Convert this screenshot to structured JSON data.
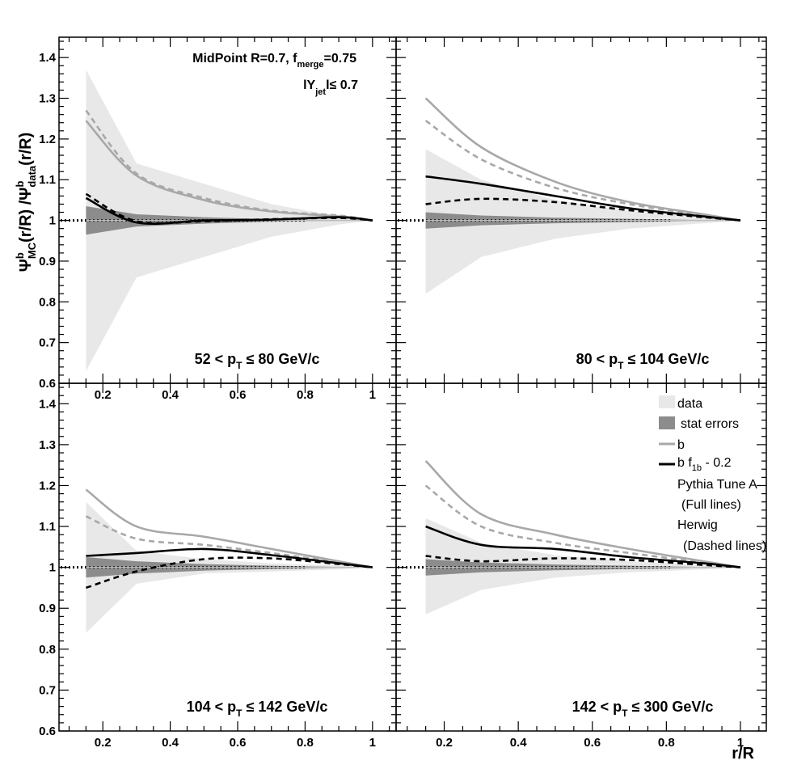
{
  "figure": {
    "ylabel_main": "Ψ",
    "ylabel_mc_sup": "b",
    "ylabel_mc_sub": "MC",
    "ylabel_mid": "(r/R) /Ψ",
    "ylabel_data_sup": "b",
    "ylabel_data_sub": "data",
    "ylabel_end": "(r/R)",
    "xlabel": "r/R",
    "annotation_algo_prefix": "MidPoint R=0.7, f",
    "annotation_algo_sub": "merge",
    "annotation_algo_suffix": "=0.75",
    "annotation_rap_prefix": "lY",
    "annotation_rap_sub": "jet",
    "annotation_rap_suffix": "l≤ 0.7"
  },
  "legend": {
    "data": "data",
    "stat": "stat errors",
    "b": "b",
    "bf_prefix": "b f",
    "bf_sub": "1b",
    "bf_suffix": " - 0.2",
    "pythia": "Pythia Tune A",
    "pythia_note": "(Full lines)",
    "herwig": "Herwig",
    "herwig_note": "(Dashed lines)"
  },
  "colors": {
    "data_band": "#e8e8e8",
    "stat_band": "#8c8c8c",
    "b_line": "#a8a8a8",
    "bf_line": "#000000"
  },
  "chart_data": [
    {
      "type": "line",
      "panel": "top-left",
      "pt_label_prefix": "52 < p",
      "pt_label_sub": "T",
      "pt_label_suffix": " ≤ 80 GeV/c",
      "xlim": [
        0.07,
        1.07
      ],
      "ylim": [
        0.6,
        1.45
      ],
      "x_ticks": [
        "0.2",
        "0.4",
        "0.6",
        "0.8",
        "1"
      ],
      "y_ticks": [
        "0.6",
        "0.7",
        "0.8",
        "0.9",
        "1",
        "1.1",
        "1.2",
        "1.3",
        "1.4"
      ],
      "x": [
        0.15,
        0.3,
        0.5,
        0.7,
        0.9,
        1.0
      ],
      "data_band_lower": [
        0.63,
        0.86,
        0.91,
        0.96,
        0.99,
        1.0
      ],
      "data_band_upper": [
        1.37,
        1.14,
        1.09,
        1.04,
        1.01,
        1.0
      ],
      "stat_band_lower": [
        0.965,
        0.985,
        0.992,
        0.997,
        0.999,
        1.0
      ],
      "stat_band_upper": [
        1.035,
        1.015,
        1.008,
        1.003,
        1.001,
        1.0
      ],
      "series": [
        {
          "name": "b Pythia Tune A",
          "values": [
            1.245,
            1.11,
            1.05,
            1.022,
            1.01,
            1.0
          ]
        },
        {
          "name": "b Herwig",
          "values": [
            1.27,
            1.115,
            1.055,
            1.024,
            1.012,
            1.0
          ]
        },
        {
          "name": "b f1b - 0.2 Pythia Tune A",
          "values": [
            1.055,
            0.995,
            1.0,
            1.002,
            1.008,
            1.0
          ]
        },
        {
          "name": "b f1b - 0.2 Herwig",
          "values": [
            1.065,
            0.998,
            0.998,
            1.003,
            1.006,
            1.0
          ]
        }
      ]
    },
    {
      "type": "line",
      "panel": "top-right",
      "pt_label_prefix": "80 < p",
      "pt_label_sub": "T",
      "pt_label_suffix": " ≤ 104 GeV/c",
      "xlim": [
        0.07,
        1.07
      ],
      "ylim": [
        0.6,
        1.45
      ],
      "x_ticks": [],
      "y_ticks": [],
      "x": [
        0.15,
        0.3,
        0.5,
        0.7,
        0.9,
        1.0
      ],
      "data_band_lower": [
        0.82,
        0.91,
        0.955,
        0.98,
        0.993,
        1.0
      ],
      "data_band_upper": [
        1.175,
        1.1,
        1.05,
        1.022,
        1.008,
        1.0
      ],
      "stat_band_lower": [
        0.98,
        0.988,
        0.993,
        0.996,
        0.999,
        1.0
      ],
      "stat_band_upper": [
        1.02,
        1.012,
        1.007,
        1.004,
        1.001,
        1.0
      ],
      "series": [
        {
          "name": "b Pythia Tune A",
          "values": [
            1.3,
            1.18,
            1.095,
            1.045,
            1.015,
            1.0
          ]
        },
        {
          "name": "b Herwig",
          "values": [
            1.245,
            1.15,
            1.08,
            1.04,
            1.013,
            1.0
          ]
        },
        {
          "name": "b f1b - 0.2 Pythia Tune A",
          "values": [
            1.108,
            1.09,
            1.06,
            1.03,
            1.01,
            1.0
          ]
        },
        {
          "name": "b f1b - 0.2 Herwig",
          "values": [
            1.04,
            1.053,
            1.045,
            1.025,
            1.008,
            1.0
          ]
        }
      ]
    },
    {
      "type": "line",
      "panel": "bottom-left",
      "pt_label_prefix": "104 < p",
      "pt_label_sub": "T",
      "pt_label_suffix": " ≤ 142 GeV/c",
      "xlim": [
        0.07,
        1.07
      ],
      "ylim": [
        0.6,
        1.45
      ],
      "x_ticks": [
        "0.2",
        "0.4",
        "0.6",
        "0.8",
        "1"
      ],
      "y_ticks": [
        "0.6",
        "0.7",
        "0.8",
        "0.9",
        "1",
        "1.1",
        "1.2",
        "1.3",
        "1.4"
      ],
      "x": [
        0.15,
        0.3,
        0.5,
        0.7,
        0.9,
        1.0
      ],
      "data_band_lower": [
        0.84,
        0.96,
        0.985,
        0.99,
        0.995,
        1.0
      ],
      "data_band_upper": [
        1.16,
        1.04,
        1.02,
        1.01,
        1.005,
        1.0
      ],
      "stat_band_lower": [
        0.975,
        0.985,
        0.992,
        0.996,
        0.999,
        1.0
      ],
      "stat_band_upper": [
        1.025,
        1.015,
        1.008,
        1.004,
        1.001,
        1.0
      ],
      "series": [
        {
          "name": "b Pythia Tune A",
          "values": [
            1.19,
            1.1,
            1.075,
            1.045,
            1.015,
            1.0
          ]
        },
        {
          "name": "b Herwig",
          "values": [
            1.125,
            1.07,
            1.055,
            1.035,
            1.012,
            1.0
          ]
        },
        {
          "name": "b f1b - 0.2 Pythia Tune A",
          "values": [
            1.028,
            1.035,
            1.045,
            1.03,
            1.01,
            1.0
          ]
        },
        {
          "name": "b f1b - 0.2 Herwig",
          "values": [
            0.95,
            0.99,
            1.02,
            1.022,
            1.008,
            1.0
          ]
        }
      ]
    },
    {
      "type": "line",
      "panel": "bottom-right",
      "pt_label_prefix": "142 < p",
      "pt_label_sub": "T",
      "pt_label_suffix": " ≤ 300 GeV/c",
      "xlim": [
        0.07,
        1.07
      ],
      "ylim": [
        0.6,
        1.45
      ],
      "x_ticks": [
        "0.2",
        "0.4",
        "0.6",
        "0.8",
        "1"
      ],
      "y_ticks": [],
      "x": [
        0.15,
        0.3,
        0.5,
        0.7,
        0.9,
        1.0
      ],
      "data_band_lower": [
        0.885,
        0.945,
        0.975,
        0.988,
        0.995,
        1.0
      ],
      "data_band_upper": [
        1.12,
        1.06,
        1.03,
        1.015,
        1.005,
        1.0
      ],
      "stat_band_lower": [
        0.98,
        0.988,
        0.993,
        0.996,
        0.999,
        1.0
      ],
      "stat_band_upper": [
        1.02,
        1.012,
        1.007,
        1.004,
        1.001,
        1.0
      ],
      "series": [
        {
          "name": "b Pythia Tune A",
          "values": [
            1.26,
            1.13,
            1.08,
            1.045,
            1.015,
            1.0
          ]
        },
        {
          "name": "b Herwig",
          "values": [
            1.2,
            1.1,
            1.06,
            1.035,
            1.012,
            1.0
          ]
        },
        {
          "name": "b f1b - 0.2 Pythia Tune A",
          "values": [
            1.1,
            1.055,
            1.045,
            1.025,
            1.01,
            1.0
          ]
        },
        {
          "name": "b f1b - 0.2 Herwig",
          "values": [
            1.028,
            1.015,
            1.022,
            1.018,
            1.006,
            1.0
          ]
        }
      ]
    }
  ]
}
